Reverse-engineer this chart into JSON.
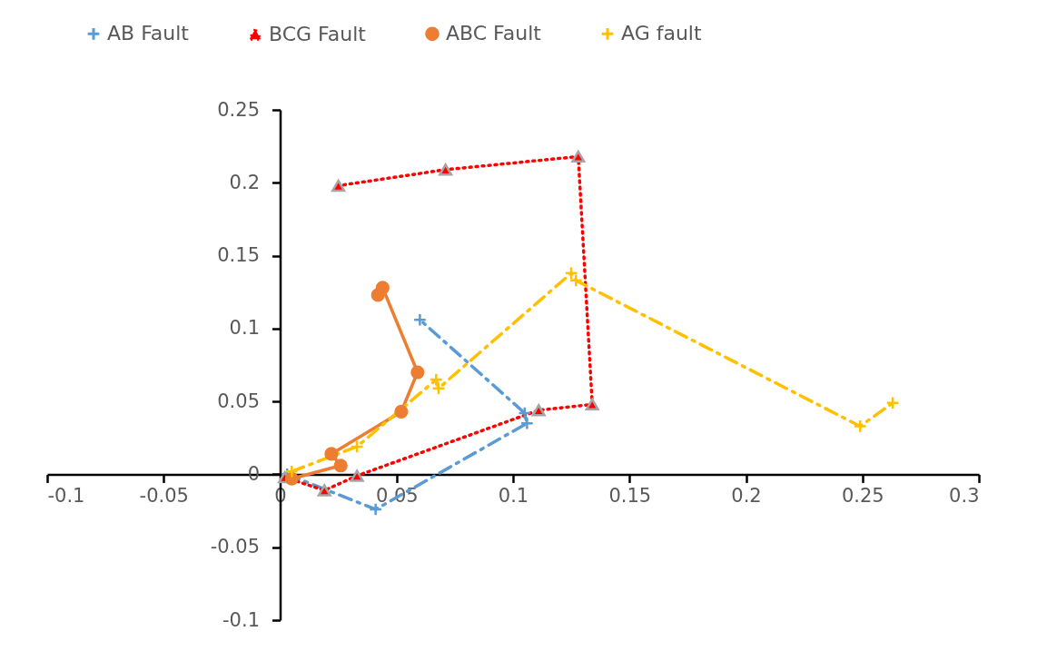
{
  "chart_data": {
    "type": "line",
    "legend": "top",
    "grid": false,
    "xlim": [
      -0.1,
      0.3
    ],
    "xticks": [
      -0.1,
      -0.05,
      0,
      0.05,
      0.1,
      0.15,
      0.2,
      0.25,
      0.3
    ],
    "ylim": [
      -0.1,
      0.25
    ],
    "yticks": [
      -0.1,
      -0.05,
      0,
      0.05,
      0.1,
      0.15,
      0.2,
      0.25
    ],
    "series": [
      {
        "name": "AB Fault",
        "color": "#5b9bd5",
        "marker": "cross",
        "line_style": "dashed",
        "x": [
          0.003,
          0.041,
          0.106,
          0.105,
          0.06
        ],
        "values": [
          0.0,
          -0.024,
          0.035,
          0.042,
          0.106
        ]
      },
      {
        "name": "BCG Fault",
        "color": "#ff0000",
        "marker": "triangle",
        "line_style": "dotted",
        "x": [
          0.002,
          0.019,
          0.033,
          0.111,
          0.134,
          0.128,
          0.071,
          0.025
        ],
        "values": [
          -0.002,
          -0.011,
          -0.001,
          0.044,
          0.048,
          0.218,
          0.209,
          0.198
        ]
      },
      {
        "name": "ABC Fault",
        "color": "#ed7d31",
        "marker": "circle",
        "line_style": "solid",
        "x": [
          0.005,
          0.026,
          0.022,
          0.052,
          0.059,
          0.044,
          0.042
        ],
        "values": [
          -0.003,
          0.006,
          0.014,
          0.043,
          0.07,
          0.128,
          0.123
        ]
      },
      {
        "name": "AG fault",
        "color": "#ffc000",
        "marker": "cross",
        "line_style": "dashed",
        "x": [
          0.005,
          0.033,
          0.067,
          0.068,
          0.125,
          0.127,
          0.249,
          0.263
        ],
        "values": [
          0.002,
          0.019,
          0.065,
          0.059,
          0.138,
          0.133,
          0.033,
          0.049
        ]
      }
    ]
  }
}
